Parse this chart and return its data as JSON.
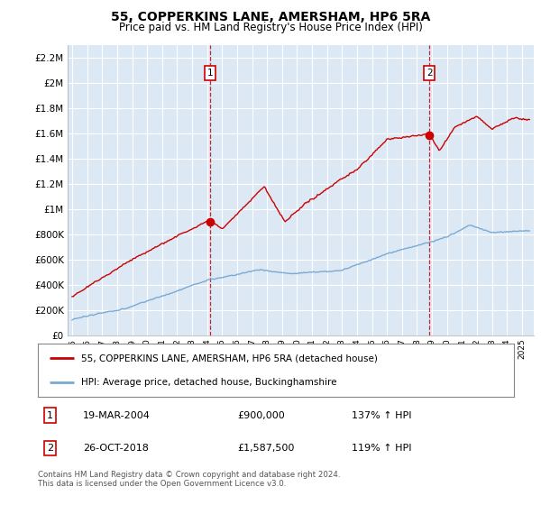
{
  "title": "55, COPPERKINS LANE, AMERSHAM, HP6 5RA",
  "subtitle": "Price paid vs. HM Land Registry's House Price Index (HPI)",
  "legend_line1": "55, COPPERKINS LANE, AMERSHAM, HP6 5RA (detached house)",
  "legend_line2": "HPI: Average price, detached house, Buckinghamshire",
  "annotation1_label": "1",
  "annotation1_date": "19-MAR-2004",
  "annotation1_price": "£900,000",
  "annotation1_hpi": "137% ↑ HPI",
  "annotation1_year": 2004.21,
  "annotation1_value": 900000,
  "annotation2_label": "2",
  "annotation2_date": "26-OCT-2018",
  "annotation2_price": "£1,587,500",
  "annotation2_hpi": "119% ↑ HPI",
  "annotation2_year": 2018.82,
  "annotation2_value": 1587500,
  "footer": "Contains HM Land Registry data © Crown copyright and database right 2024.\nThis data is licensed under the Open Government Licence v3.0.",
  "line1_color": "#cc0000",
  "line2_color": "#7aaad4",
  "plot_bg_color": "#dce9f5",
  "outer_bg_color": "#e8e8e8",
  "ylim": [
    0,
    2300000
  ],
  "yticks": [
    0,
    200000,
    400000,
    600000,
    800000,
    1000000,
    1200000,
    1400000,
    1600000,
    1800000,
    2000000,
    2200000
  ],
  "xlim_start": 1994.7,
  "xlim_end": 2025.8
}
